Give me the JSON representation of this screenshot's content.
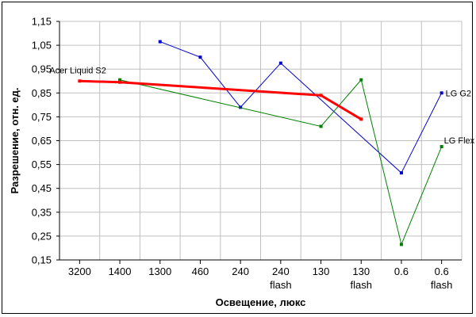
{
  "chart_data": {
    "type": "line",
    "xlabel": "Освещение, люкс",
    "ylabel": "Разрешение, отн. ед.",
    "categories": [
      [
        "3200"
      ],
      [
        "1400"
      ],
      [
        "1300"
      ],
      [
        "460"
      ],
      [
        "240"
      ],
      [
        "240",
        "flash"
      ],
      [
        "130"
      ],
      [
        "130",
        "flash"
      ],
      [
        "0.6"
      ],
      [
        "0.6",
        "flash"
      ]
    ],
    "yticks": [
      "0,15",
      "0,25",
      "0,35",
      "0,45",
      "0,55",
      "0,65",
      "0,75",
      "0,85",
      "0,95",
      "1,05",
      "1,15"
    ],
    "ylim": [
      0.15,
      1.15
    ],
    "grid": true,
    "legend": "none",
    "series": [
      {
        "name": "LG G2",
        "color": "#0000cc",
        "thick": false,
        "values": [
          null,
          null,
          1.065,
          1.0,
          0.79,
          0.975,
          null,
          null,
          0.515,
          0.85
        ]
      },
      {
        "name": "LG Flex",
        "color": "#008000",
        "thick": false,
        "values": [
          null,
          0.905,
          null,
          null,
          null,
          null,
          0.71,
          0.905,
          0.215,
          0.625
        ]
      },
      {
        "name": "Acer Liquid S2",
        "color": "#ff0000",
        "thick": true,
        "values": [
          0.9,
          0.895,
          null,
          null,
          null,
          null,
          0.84,
          0.74,
          null,
          null
        ]
      }
    ]
  }
}
